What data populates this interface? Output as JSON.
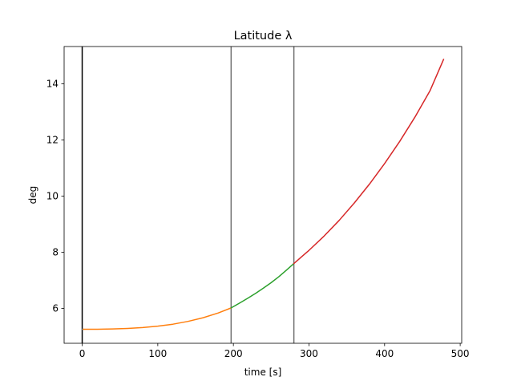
{
  "chart_data": {
    "type": "line",
    "title": "Latitude λ",
    "xlabel": "time [s]",
    "ylabel": "deg",
    "xlim": [
      -23.9,
      502
    ],
    "ylim": [
      4.76,
      15.33
    ],
    "xticks": [
      0,
      100,
      200,
      300,
      400,
      500
    ],
    "yticks": [
      6,
      8,
      10,
      12,
      14
    ],
    "grid": false,
    "vlines": [
      {
        "x": 0,
        "color": "#000000"
      },
      {
        "x": 197,
        "color": "#707070"
      },
      {
        "x": 280,
        "color": "#707070"
      }
    ],
    "series": [
      {
        "color": "#1f77b4",
        "x": [
          0,
          1
        ],
        "y": [
          5.26,
          5.26
        ]
      },
      {
        "color": "#ff7f0e",
        "x": [
          1,
          20,
          40,
          60,
          80,
          100,
          120,
          140,
          160,
          180,
          197
        ],
        "y": [
          5.26,
          5.26,
          5.27,
          5.29,
          5.32,
          5.37,
          5.44,
          5.54,
          5.67,
          5.84,
          6.02
        ]
      },
      {
        "color": "#2ca02c",
        "x": [
          197,
          210,
          220,
          230,
          240,
          250,
          260,
          270,
          280
        ],
        "y": [
          6.02,
          6.22,
          6.38,
          6.55,
          6.73,
          6.92,
          7.13,
          7.36,
          7.6
        ]
      },
      {
        "color": "#d62728",
        "x": [
          280,
          300,
          320,
          340,
          360,
          380,
          400,
          420,
          440,
          460,
          478
        ],
        "y": [
          7.6,
          8.07,
          8.58,
          9.14,
          9.76,
          10.43,
          11.16,
          11.95,
          12.81,
          13.75,
          14.87
        ]
      }
    ]
  }
}
